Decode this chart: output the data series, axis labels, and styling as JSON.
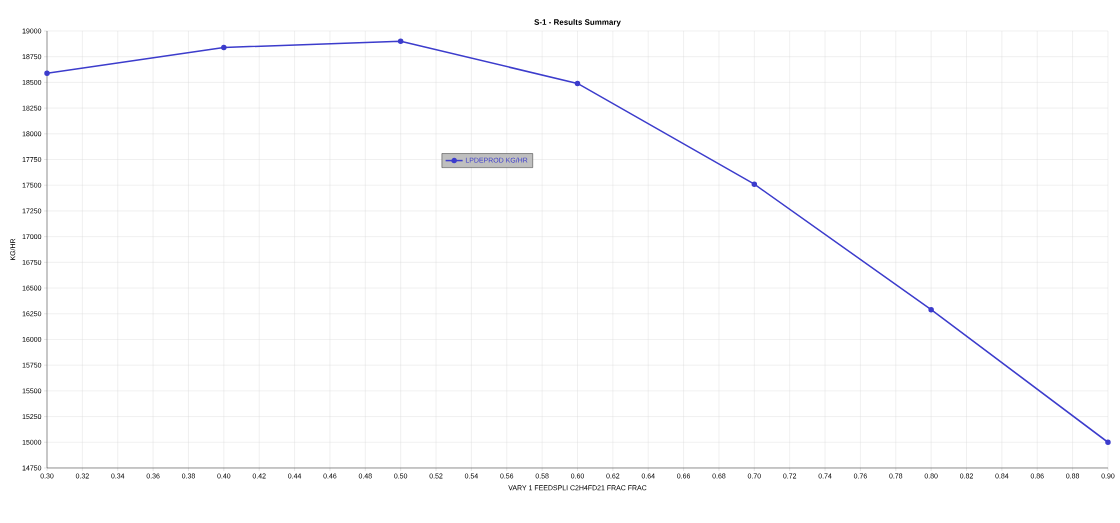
{
  "chart_data": {
    "type": "line",
    "title": "S-1 - Results Summary",
    "xlabel": "VARY   1 FEEDSPLI C2H4FD21 FRAC     FRAC",
    "ylabel": "KG/HR",
    "x": [
      0.3,
      0.4,
      0.5,
      0.6,
      0.7,
      0.8,
      0.9
    ],
    "series": [
      {
        "name": "LPDEPROD     KG/HR",
        "color": "#3c3ccc",
        "values": [
          18590,
          18840,
          18900,
          18490,
          17510,
          16290,
          15000
        ]
      }
    ],
    "xlim": [
      0.3,
      0.9
    ],
    "xticks": [
      {
        "value": 0.3,
        "label": "0.30"
      },
      {
        "value": 0.32,
        "label": "0.32"
      },
      {
        "value": 0.34,
        "label": "0.34"
      },
      {
        "value": 0.36,
        "label": "0.36"
      },
      {
        "value": 0.38,
        "label": "0.38"
      },
      {
        "value": 0.4,
        "label": "0.40"
      },
      {
        "value": 0.42,
        "label": "0.42"
      },
      {
        "value": 0.44,
        "label": "0.44"
      },
      {
        "value": 0.46,
        "label": "0.46"
      },
      {
        "value": 0.48,
        "label": "0.48"
      },
      {
        "value": 0.5,
        "label": "0.50"
      },
      {
        "value": 0.52,
        "label": "0.52"
      },
      {
        "value": 0.54,
        "label": "0.54"
      },
      {
        "value": 0.56,
        "label": "0.56"
      },
      {
        "value": 0.58,
        "label": "0.58"
      },
      {
        "value": 0.6,
        "label": "0.60"
      },
      {
        "value": 0.62,
        "label": "0.62"
      },
      {
        "value": 0.64,
        "label": "0.64"
      },
      {
        "value": 0.66,
        "label": "0.66"
      },
      {
        "value": 0.68,
        "label": "0.68"
      },
      {
        "value": 0.7,
        "label": "0.70"
      },
      {
        "value": 0.72,
        "label": "0.72"
      },
      {
        "value": 0.74,
        "label": "0.74"
      },
      {
        "value": 0.76,
        "label": "0.76"
      },
      {
        "value": 0.78,
        "label": "0.78"
      },
      {
        "value": 0.8,
        "label": "0.80"
      },
      {
        "value": 0.82,
        "label": "0.82"
      },
      {
        "value": 0.84,
        "label": "0.84"
      },
      {
        "value": 0.86,
        "label": "0.86"
      },
      {
        "value": 0.88,
        "label": "0.88"
      },
      {
        "value": 0.9,
        "label": "0.90"
      }
    ],
    "ylim": [
      14750,
      19000
    ],
    "yticks": [
      14750,
      15000,
      15250,
      15500,
      15750,
      16000,
      16250,
      16500,
      16750,
      17000,
      17250,
      17500,
      17750,
      18000,
      18250,
      18500,
      18750,
      19000
    ],
    "grid": true,
    "legend": "top left",
    "marker": "circle",
    "line_style": "solid"
  }
}
